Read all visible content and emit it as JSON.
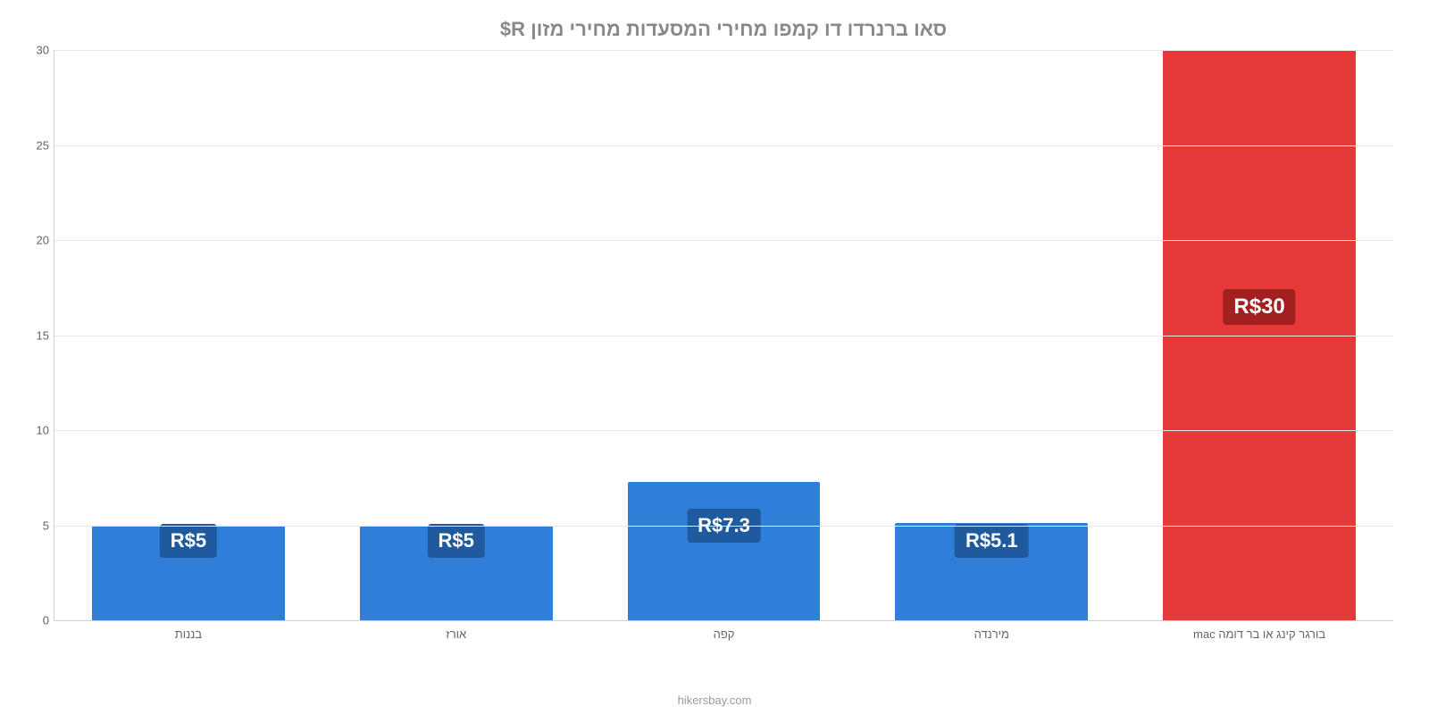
{
  "chart": {
    "type": "bar",
    "title": "סאו ברנרדו דו קמפו מחירי המסעדות מחירי מזון R$",
    "title_color": "#888888",
    "title_fontsize": 22,
    "background_color": "#ffffff",
    "grid_color": "#e8e8e8",
    "axis_color": "#d0d0d0",
    "tick_label_color": "#666666",
    "tick_label_fontsize": 13,
    "ylim": [
      0,
      30
    ],
    "ytick_step": 5,
    "yticks": [
      0,
      5,
      10,
      15,
      20,
      25,
      30
    ],
    "bar_width_pct": 72,
    "bars": [
      {
        "category": "בורגר קינג או בר דומה mac",
        "value": 30,
        "value_label": "R$30",
        "color": "#e63939",
        "label_bg": "#a22020",
        "label_fontsize": 24,
        "label_y": 16.5
      },
      {
        "category": "מירנדה",
        "value": 5.1,
        "value_label": "R$5.1",
        "color": "#2f7ed8",
        "label_bg": "#1f5a9e",
        "label_fontsize": 22,
        "label_y": 4.2
      },
      {
        "category": "קפה",
        "value": 7.3,
        "value_label": "R$7.3",
        "color": "#2f7ed8",
        "label_bg": "#1f5a9e",
        "label_fontsize": 22,
        "label_y": 5.0
      },
      {
        "category": "אורז",
        "value": 5,
        "value_label": "R$5",
        "color": "#2f7ed8",
        "label_bg": "#1f5a9e",
        "label_fontsize": 22,
        "label_y": 4.2
      },
      {
        "category": "בננות",
        "value": 5,
        "value_label": "R$5",
        "color": "#2f7ed8",
        "label_bg": "#1f5a9e",
        "label_fontsize": 22,
        "label_y": 4.2
      }
    ],
    "attribution": "hikersbay.com",
    "attribution_color": "#999999",
    "attribution_fontsize": 13
  }
}
